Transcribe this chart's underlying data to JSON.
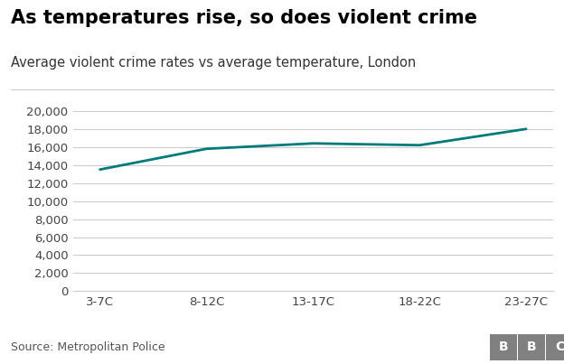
{
  "title": "As temperatures rise, so does violent crime",
  "subtitle": "Average violent crime rates vs average temperature, London",
  "x_labels": [
    "3-7C",
    "8-12C",
    "13-17C",
    "18-22C",
    "23-27C"
  ],
  "y_values": [
    13500,
    15800,
    16400,
    16200,
    18000
  ],
  "line_color": "#007a7a",
  "line_width": 2.0,
  "ylim": [
    0,
    21000
  ],
  "yticks": [
    0,
    2000,
    4000,
    6000,
    8000,
    10000,
    12000,
    14000,
    16000,
    18000,
    20000
  ],
  "background_color": "#ffffff",
  "grid_color": "#cccccc",
  "title_fontsize": 15,
  "subtitle_fontsize": 10.5,
  "tick_fontsize": 9.5,
  "source_text": "Source: Metropolitan Police",
  "bbc_text": "BBC",
  "title_color": "#000000",
  "subtitle_color": "#333333",
  "source_color": "#555555",
  "bbc_bg_color": "#808080",
  "bbc_text_color": "#ffffff"
}
